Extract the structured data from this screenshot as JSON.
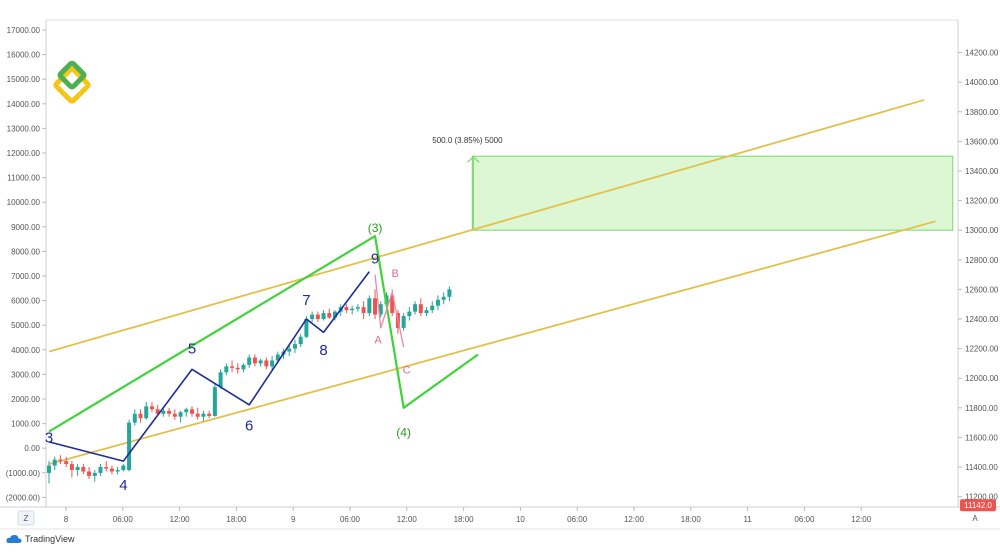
{
  "chart_data": {
    "type": "candlestick",
    "left_axis": {
      "ticks": [
        "17000.00",
        "16000.00",
        "15000.00",
        "14000.00",
        "13000.00",
        "12000.00",
        "11000.00",
        "10000.00",
        "9000.00",
        "8000.00",
        "7000.00",
        "6000.00",
        "5000.00",
        "4000.00",
        "3000.00",
        "2000.00",
        "1000.00",
        "0.00",
        "(1000.00)",
        "(2000.00)"
      ],
      "ylim": [
        -2000,
        17000
      ]
    },
    "right_axis": {
      "ticks": [
        "14200.00",
        "14000.00",
        "13800.00",
        "13600.00",
        "13400.00",
        "13200.00",
        "13000.00",
        "12800.00",
        "12600.00",
        "12400.00",
        "12200.00",
        "12000.00",
        "11800.00",
        "11600.00",
        "11400.00",
        "11200.00"
      ],
      "ylim": [
        11130,
        14420
      ],
      "last_price": "11142.0",
      "corner_label": "A"
    },
    "x_axis": {
      "ticks": [
        "8",
        "06:00",
        "12:00",
        "18:00",
        "9",
        "06:00",
        "12:00",
        "18:00",
        "10",
        "06:00",
        "12:00",
        "18:00",
        "11",
        "06:00",
        "12:00"
      ],
      "corner_label": "Z"
    },
    "candles": [
      {
        "o": 11360,
        "h": 11440,
        "l": 11290,
        "c": 11410
      },
      {
        "o": 11410,
        "h": 11470,
        "l": 11380,
        "c": 11450
      },
      {
        "o": 11450,
        "h": 11480,
        "l": 11420,
        "c": 11440
      },
      {
        "o": 11440,
        "h": 11470,
        "l": 11400,
        "c": 11420
      },
      {
        "o": 11420,
        "h": 11440,
        "l": 11330,
        "c": 11380
      },
      {
        "o": 11380,
        "h": 11420,
        "l": 11340,
        "c": 11400
      },
      {
        "o": 11400,
        "h": 11420,
        "l": 11350,
        "c": 11370
      },
      {
        "o": 11370,
        "h": 11400,
        "l": 11320,
        "c": 11340
      },
      {
        "o": 11340,
        "h": 11380,
        "l": 11300,
        "c": 11360
      },
      {
        "o": 11360,
        "h": 11420,
        "l": 11340,
        "c": 11400
      },
      {
        "o": 11400,
        "h": 11440,
        "l": 11370,
        "c": 11390
      },
      {
        "o": 11390,
        "h": 11410,
        "l": 11350,
        "c": 11370
      },
      {
        "o": 11370,
        "h": 11400,
        "l": 11350,
        "c": 11380
      },
      {
        "o": 11380,
        "h": 11420,
        "l": 11370,
        "c": 11410
      },
      {
        "o": 11380,
        "h": 11720,
        "l": 11370,
        "c": 11700
      },
      {
        "o": 11700,
        "h": 11790,
        "l": 11680,
        "c": 11760
      },
      {
        "o": 11760,
        "h": 11790,
        "l": 11700,
        "c": 11730
      },
      {
        "o": 11730,
        "h": 11840,
        "l": 11720,
        "c": 11810
      },
      {
        "o": 11810,
        "h": 11840,
        "l": 11770,
        "c": 11790
      },
      {
        "o": 11790,
        "h": 11820,
        "l": 11750,
        "c": 11760
      },
      {
        "o": 11760,
        "h": 11800,
        "l": 11740,
        "c": 11780
      },
      {
        "o": 11780,
        "h": 11800,
        "l": 11740,
        "c": 11760
      },
      {
        "o": 11760,
        "h": 11790,
        "l": 11720,
        "c": 11740
      },
      {
        "o": 11740,
        "h": 11780,
        "l": 11700,
        "c": 11770
      },
      {
        "o": 11770,
        "h": 11800,
        "l": 11740,
        "c": 11790
      },
      {
        "o": 11790,
        "h": 11810,
        "l": 11740,
        "c": 11760
      },
      {
        "o": 11760,
        "h": 11800,
        "l": 11720,
        "c": 11740
      },
      {
        "o": 11740,
        "h": 11780,
        "l": 11710,
        "c": 11760
      },
      {
        "o": 11760,
        "h": 11780,
        "l": 11730,
        "c": 11745
      },
      {
        "o": 11745,
        "h": 11960,
        "l": 11740,
        "c": 11940
      },
      {
        "o": 11940,
        "h": 12060,
        "l": 11930,
        "c": 12040
      },
      {
        "o": 12040,
        "h": 12100,
        "l": 12020,
        "c": 12080
      },
      {
        "o": 12080,
        "h": 12120,
        "l": 12040,
        "c": 12070
      },
      {
        "o": 12070,
        "h": 12100,
        "l": 12030,
        "c": 12060
      },
      {
        "o": 12060,
        "h": 12100,
        "l": 12040,
        "c": 12090
      },
      {
        "o": 12090,
        "h": 12160,
        "l": 12070,
        "c": 12140
      },
      {
        "o": 12140,
        "h": 12160,
        "l": 12080,
        "c": 12100
      },
      {
        "o": 12100,
        "h": 12130,
        "l": 12080,
        "c": 12120
      },
      {
        "o": 12120,
        "h": 12140,
        "l": 12060,
        "c": 12080
      },
      {
        "o": 12080,
        "h": 12150,
        "l": 12060,
        "c": 12120
      },
      {
        "o": 12120,
        "h": 12180,
        "l": 12100,
        "c": 12160
      },
      {
        "o": 12160,
        "h": 12200,
        "l": 12130,
        "c": 12180
      },
      {
        "o": 12180,
        "h": 12220,
        "l": 12150,
        "c": 12200
      },
      {
        "o": 12200,
        "h": 12260,
        "l": 12170,
        "c": 12230
      },
      {
        "o": 12230,
        "h": 12300,
        "l": 12210,
        "c": 12280
      },
      {
        "o": 12280,
        "h": 12420,
        "l": 12270,
        "c": 12400
      },
      {
        "o": 12400,
        "h": 12450,
        "l": 12380,
        "c": 12430
      },
      {
        "o": 12430,
        "h": 12450,
        "l": 12380,
        "c": 12400
      },
      {
        "o": 12400,
        "h": 12460,
        "l": 12390,
        "c": 12440
      },
      {
        "o": 12440,
        "h": 12470,
        "l": 12400,
        "c": 12410
      },
      {
        "o": 12410,
        "h": 12460,
        "l": 12390,
        "c": 12450
      },
      {
        "o": 12450,
        "h": 12500,
        "l": 12420,
        "c": 12480
      },
      {
        "o": 12480,
        "h": 12500,
        "l": 12440,
        "c": 12460
      },
      {
        "o": 12460,
        "h": 12490,
        "l": 12430,
        "c": 12470
      },
      {
        "o": 12470,
        "h": 12500,
        "l": 12450,
        "c": 12480
      },
      {
        "o": 12480,
        "h": 12520,
        "l": 12400,
        "c": 12440
      },
      {
        "o": 12440,
        "h": 12560,
        "l": 12420,
        "c": 12540
      },
      {
        "o": 12540,
        "h": 12600,
        "l": 12400,
        "c": 12430
      },
      {
        "o": 12430,
        "h": 12520,
        "l": 12410,
        "c": 12500
      },
      {
        "o": 12500,
        "h": 12580,
        "l": 12480,
        "c": 12560
      },
      {
        "o": 12560,
        "h": 12600,
        "l": 12420,
        "c": 12440
      },
      {
        "o": 12440,
        "h": 12460,
        "l": 12300,
        "c": 12340
      },
      {
        "o": 12340,
        "h": 12440,
        "l": 12320,
        "c": 12420
      },
      {
        "o": 12420,
        "h": 12480,
        "l": 12390,
        "c": 12450
      },
      {
        "o": 12450,
        "h": 12520,
        "l": 12430,
        "c": 12500
      },
      {
        "o": 12500,
        "h": 12540,
        "l": 12420,
        "c": 12440
      },
      {
        "o": 12440,
        "h": 12480,
        "l": 12420,
        "c": 12460
      },
      {
        "o": 12460,
        "h": 12520,
        "l": 12440,
        "c": 12490
      },
      {
        "o": 12490,
        "h": 12560,
        "l": 12460,
        "c": 12530
      },
      {
        "o": 12530,
        "h": 12580,
        "l": 12500,
        "c": 12550
      },
      {
        "o": 12550,
        "h": 12620,
        "l": 12520,
        "c": 12600
      }
    ],
    "channel_lines": [
      {
        "from": {
          "bar": 0,
          "price": 12180
        },
        "to": {
          "bar": 153,
          "price": 13880
        }
      },
      {
        "from": {
          "bar": 0,
          "price": 11420
        },
        "to": {
          "bar": 155,
          "price": 13060
        }
      }
    ],
    "green_zigzag": [
      {
        "bar": 0,
        "price": 11640
      },
      {
        "bar": 57,
        "price": 12960
      },
      {
        "bar": 62,
        "price": 11800
      },
      {
        "bar": 75,
        "price": 12160
      }
    ],
    "blue_zigzag": [
      {
        "bar": 0,
        "price": 11570
      },
      {
        "bar": 13,
        "price": 11440
      },
      {
        "bar": 25,
        "price": 12060
      },
      {
        "bar": 35,
        "price": 11820
      },
      {
        "bar": 45,
        "price": 12400
      },
      {
        "bar": 48,
        "price": 12310
      },
      {
        "bar": 56,
        "price": 12720
      }
    ],
    "pink_abc": [
      {
        "bar": 57,
        "price": 12700
      },
      {
        "bar": 58,
        "price": 12340
      },
      {
        "bar": 60,
        "price": 12580
      },
      {
        "bar": 62,
        "price": 12210
      }
    ],
    "measure_box": {
      "from_bar": 74,
      "to_bar": 158,
      "bottom_price": 13000,
      "top_price": 13500
    },
    "measure_label": "500.0 (3.85%) 5000",
    "wave_labels": {
      "blue": [
        {
          "text": "3",
          "bar": 0,
          "price": 11600
        },
        {
          "text": "4",
          "bar": 13,
          "price": 11280
        },
        {
          "text": "5",
          "bar": 25,
          "price": 12200
        },
        {
          "text": "6",
          "bar": 35,
          "price": 11680
        },
        {
          "text": "7",
          "bar": 45,
          "price": 12530
        },
        {
          "text": "8",
          "bar": 48,
          "price": 12190
        },
        {
          "text": "9",
          "bar": 57,
          "price": 12810
        }
      ],
      "green": [
        {
          "text": "(3)",
          "bar": 57,
          "price": 13020
        },
        {
          "text": "(4)",
          "bar": 62,
          "price": 11640
        }
      ],
      "pink": [
        {
          "text": "B",
          "bar": 60,
          "price": 12710
        },
        {
          "text": "A",
          "bar": 57,
          "price": 12260
        },
        {
          "text": "C",
          "bar": 62,
          "price": 12060
        }
      ]
    },
    "colors": {
      "up": "#26a69a",
      "down": "#ef5350",
      "channel": "#e3c04a",
      "green_wave": "#41d33a",
      "blue_wave": "#1f2b9b",
      "pink_wave": "#e88aa3",
      "measure_fill": "#d7f5cc",
      "measure_border": "#7ad86a",
      "price_tag": "#ef5350",
      "logo_green": "#4caf50",
      "logo_yellow": "#f5c518"
    }
  },
  "footer": {
    "brand": "TradingView"
  }
}
